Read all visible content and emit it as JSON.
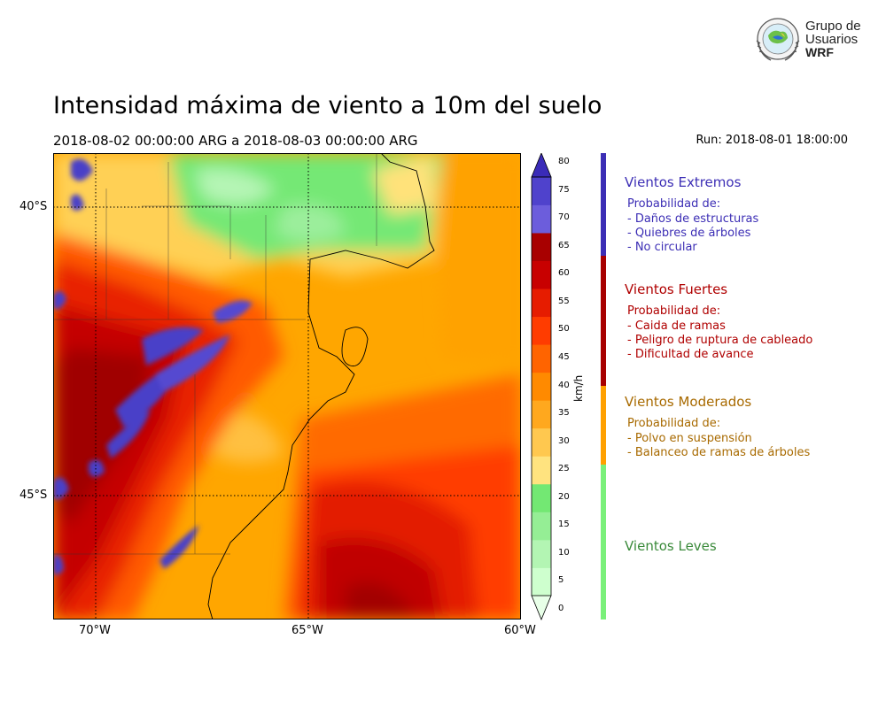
{
  "header": {
    "title": "Intensidad máxima de viento a 10m del suelo",
    "period": "2018-08-02 00:00:00 ARG  a  2018-08-03 00:00:00 ARG",
    "run": "Run: 2018-08-01 18:00:00"
  },
  "logo": {
    "line1": "Grupo de",
    "line2": "Usuarios",
    "line3": "WRF",
    "icon": "globe-seal-icon"
  },
  "map": {
    "lat_ticks": [
      "40°S",
      "45°S"
    ],
    "lon_ticks": [
      "70°W",
      "65°W",
      "60°W"
    ],
    "gridlines": "dotted"
  },
  "colorbar": {
    "unit": "km/h",
    "ticks": [
      "0",
      "5",
      "10",
      "15",
      "20",
      "25",
      "30",
      "35",
      "40",
      "45",
      "50",
      "55",
      "60",
      "65",
      "70",
      "75",
      "80"
    ],
    "colors": [
      "#e8ffe8",
      "#ceffce",
      "#b3f5b3",
      "#95ee95",
      "#73e873",
      "#ffe37f",
      "#ffc84f",
      "#ffa81e",
      "#ff8a00",
      "#ff6400",
      "#ff3c00",
      "#e61c00",
      "#c80000",
      "#a80000",
      "#6c5ddc",
      "#4f42cc",
      "#3a2bb8"
    ]
  },
  "legend": {
    "prob_label": "Probabilidad de:",
    "categories": [
      {
        "title": "Vientos Extremos",
        "color": "#3c2eb5",
        "items": [
          "- Daños de estructuras",
          "- Quiebres de árboles",
          "- No circular"
        ]
      },
      {
        "title": "Vientos Fuertes",
        "color": "#b00000",
        "items": [
          "- Caida de ramas",
          "- Peligro de ruptura de cableado",
          "- Dificultad de avance"
        ]
      },
      {
        "title": "Vientos Moderados",
        "color": "#a86a00",
        "items": [
          "- Polvo en suspensión",
          "- Balanceo de ramas de árboles"
        ]
      },
      {
        "title": "Vientos Leves",
        "color": "#3a8a3a",
        "items": []
      }
    ],
    "stripe_colors": [
      "#3c2eb5",
      "#a80000",
      "#ffa000",
      "#7af07a"
    ]
  }
}
